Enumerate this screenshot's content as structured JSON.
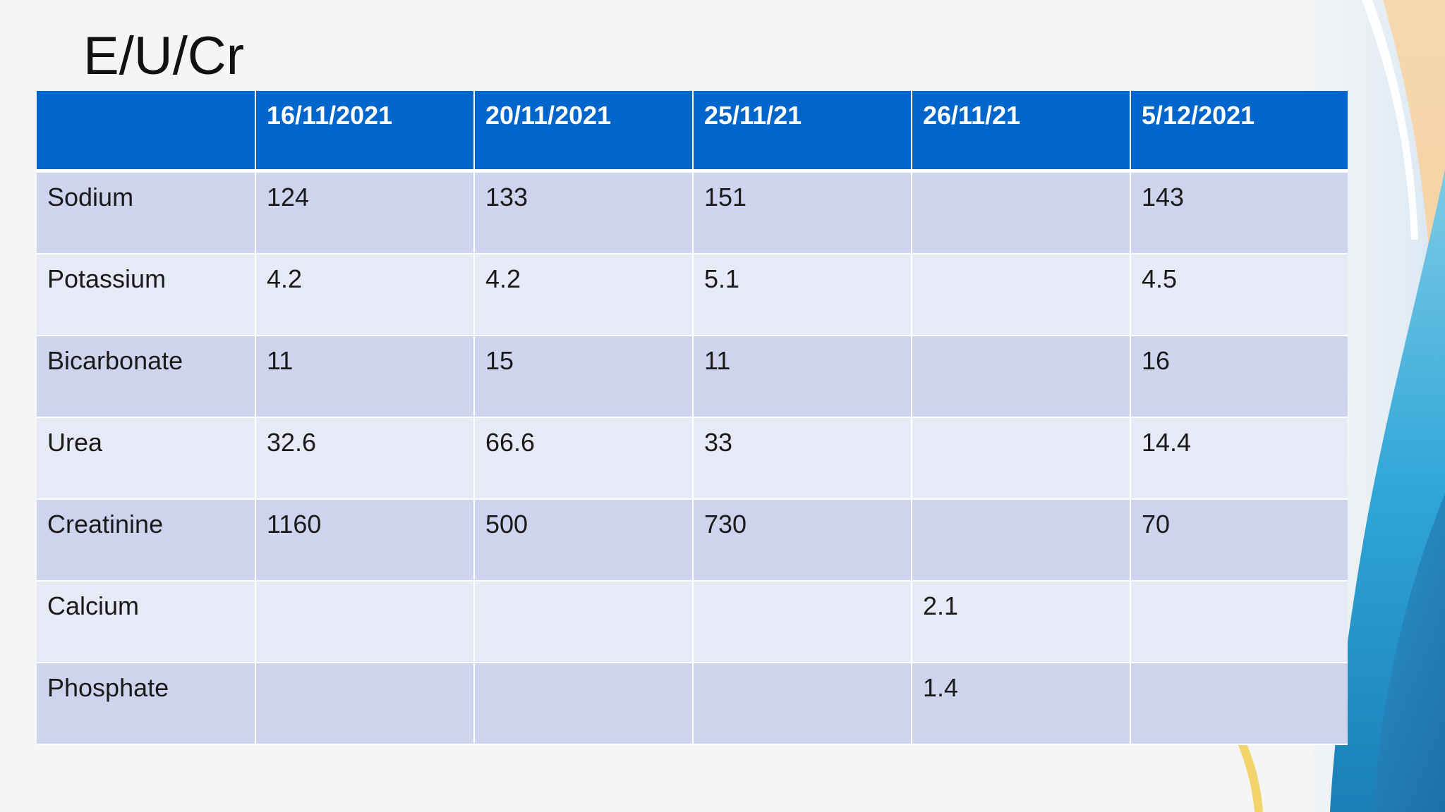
{
  "slide": {
    "title": "E/U/Cr"
  },
  "colors": {
    "header_bg": "#0066cc",
    "row_band_dark": "#cfd4ee",
    "row_band_light": "#e8e9f6"
  },
  "table": {
    "columns": [
      "",
      "16/11/2021",
      "20/11/2021",
      "25/11/21",
      "26/11/21",
      "5/12/2021"
    ],
    "rows": [
      [
        "Sodium",
        "124",
        "133",
        "151",
        "",
        "143"
      ],
      [
        "Potassium",
        "4.2",
        "4.2",
        "5.1",
        "",
        "4.5"
      ],
      [
        "Bicarbonate",
        "11",
        "15",
        "11",
        "",
        "16"
      ],
      [
        "Urea",
        "32.6",
        "66.6",
        "33",
        "",
        "14.4"
      ],
      [
        "Creatinine",
        "1160",
        "500",
        "730",
        "",
        "70"
      ],
      [
        "Calcium",
        "",
        "",
        "",
        "2.1",
        ""
      ],
      [
        "Phosphate",
        "",
        "",
        "",
        "1.4",
        ""
      ]
    ]
  }
}
